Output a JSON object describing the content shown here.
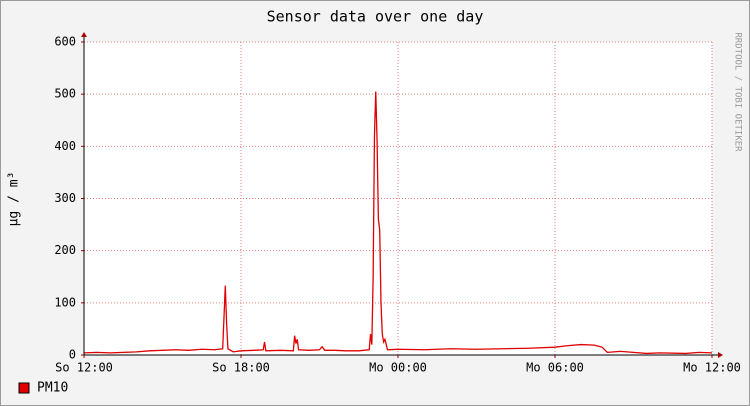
{
  "chart_data": {
    "type": "line",
    "title": "Sensor data over one day",
    "y_label": "µg / m³",
    "watermark": "RRDTOOL / TOBI OETIKER",
    "x": [
      0,
      0.5,
      1,
      1.5,
      2,
      2.5,
      3,
      3.5,
      4,
      4.5,
      5,
      5.3,
      5.4,
      5.45,
      5.5,
      5.7,
      6,
      6.5,
      6.85,
      6.9,
      6.95,
      7.5,
      8,
      8.05,
      8.1,
      8.15,
      8.2,
      8.6,
      9,
      9.1,
      9.2,
      9.6,
      10,
      10.5,
      10.9,
      10.95,
      11,
      11.05,
      11.1,
      11.15,
      11.2,
      11.25,
      11.3,
      11.35,
      11.4,
      11.45,
      11.5,
      11.6,
      12,
      13,
      14,
      15,
      16,
      17,
      18,
      18.5,
      19,
      19.5,
      19.8,
      19.9,
      20,
      20.5,
      21,
      21.5,
      22,
      23,
      23.5,
      24
    ],
    "series": [
      {
        "name": "PM10",
        "color": "#e00000",
        "values": [
          4,
          5,
          4,
          5,
          6,
          8,
          9,
          10,
          9,
          11,
          10,
          12,
          133,
          60,
          12,
          6,
          8,
          9,
          10,
          25,
          8,
          9,
          8,
          37,
          22,
          30,
          10,
          9,
          10,
          16,
          9,
          9,
          8,
          8,
          10,
          40,
          20,
          150,
          420,
          505,
          410,
          260,
          240,
          100,
          40,
          25,
          30,
          10,
          11,
          10,
          12,
          11,
          12,
          13,
          15,
          18,
          20,
          19,
          15,
          10,
          5,
          7,
          5,
          3,
          4,
          3,
          5,
          4
        ]
      }
    ],
    "xlim": [
      0,
      24
    ],
    "xticks": [
      {
        "value": 0,
        "label": "So 12:00"
      },
      {
        "value": 6,
        "label": "So 18:00"
      },
      {
        "value": 12,
        "label": "Mo 00:00"
      },
      {
        "value": 18,
        "label": "Mo 06:00"
      },
      {
        "value": 24,
        "label": "Mo 12:00"
      }
    ],
    "ylim": [
      0,
      600
    ],
    "yticks": [
      0,
      100,
      200,
      300,
      400,
      500,
      600
    ],
    "grid": true
  }
}
